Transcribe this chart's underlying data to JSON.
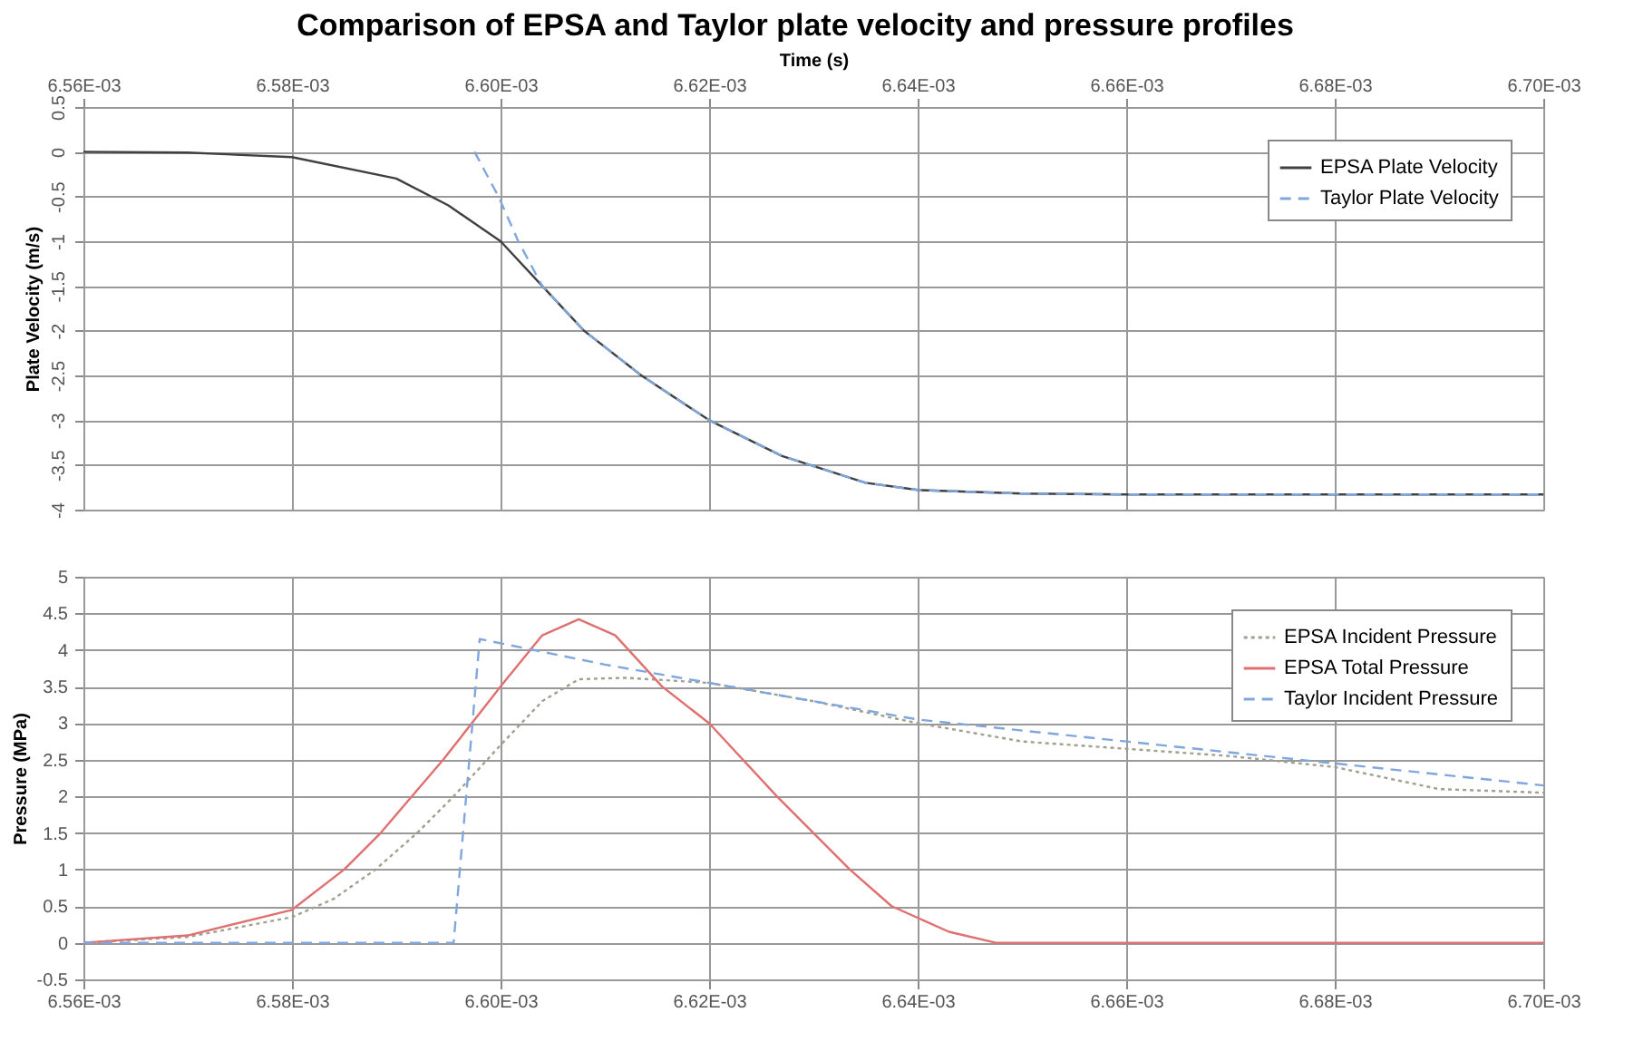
{
  "chart_data": [
    {
      "type": "line",
      "title": "Comparison of EPSA and Taylor plate velocity and pressure profiles",
      "xlabel": "Time (s)",
      "ylabel": "Plate Velocity (m/s)",
      "xlim": [
        0.00656,
        0.0067
      ],
      "xticks": [
        {
          "value": 0.00656,
          "label": "6.56E-03"
        },
        {
          "value": 0.00658,
          "label": "6.58E-03"
        },
        {
          "value": 0.0066,
          "label": "6.60E-03"
        },
        {
          "value": 0.00662,
          "label": "6.62E-03"
        },
        {
          "value": 0.00664,
          "label": "6.64E-03"
        },
        {
          "value": 0.00666,
          "label": "6.66E-03"
        },
        {
          "value": 0.00668,
          "label": "6.68E-03"
        },
        {
          "value": 0.0067,
          "label": "6.70E-03"
        }
      ],
      "ylim": [
        -4,
        0.5
      ],
      "yticks": [
        -4,
        -3.5,
        -3,
        -2.5,
        -2,
        -1.5,
        -1,
        -0.5,
        0,
        0.5
      ],
      "grid": true,
      "legend": "top right",
      "marker": "none",
      "series": [
        {
          "name": "EPSA Plate Velocity",
          "color": "#404040",
          "line_style": "solid",
          "x": [
            0.00656,
            0.00657,
            0.00658,
            0.00659,
            0.006595,
            0.0066,
            0.006604,
            0.006608,
            0.0066135,
            0.00662,
            0.006627,
            0.006635,
            0.00664,
            0.00665,
            0.00666,
            0.0067
          ],
          "values": [
            0,
            -0.01,
            -0.06,
            -0.3,
            -0.6,
            -1,
            -1.5,
            -2,
            -2.5,
            -3,
            -3.4,
            -3.7,
            -3.78,
            -3.82,
            -3.83,
            -3.83
          ]
        },
        {
          "name": "Taylor Plate Velocity",
          "color": "#7fa7dd",
          "line_style": "dashed",
          "x": [
            0.0065975,
            0.0065998,
            0.0066017,
            0.006604,
            0.006608,
            0.0066135,
            0.00662,
            0.006627,
            0.006635,
            0.00664,
            0.00665,
            0.00666,
            0.0067
          ],
          "values": [
            0,
            -0.5,
            -1,
            -1.5,
            -2,
            -2.5,
            -3,
            -3.4,
            -3.7,
            -3.78,
            -3.82,
            -3.83,
            -3.83
          ]
        }
      ]
    },
    {
      "type": "line",
      "ylabel": "Pressure (MPa)",
      "xlim": [
        0.00656,
        0.0067
      ],
      "xticks": [
        {
          "value": 0.00656,
          "label": "6.56E-03"
        },
        {
          "value": 0.00658,
          "label": "6.58E-03"
        },
        {
          "value": 0.0066,
          "label": "6.60E-03"
        },
        {
          "value": 0.00662,
          "label": "6.62E-03"
        },
        {
          "value": 0.00664,
          "label": "6.64E-03"
        },
        {
          "value": 0.00666,
          "label": "6.66E-03"
        },
        {
          "value": 0.00668,
          "label": "6.68E-03"
        },
        {
          "value": 0.0067,
          "label": "6.70E-03"
        }
      ],
      "ylim": [
        -0.5,
        5
      ],
      "yticks": [
        -0.5,
        0,
        0.5,
        1,
        1.5,
        2,
        2.5,
        3,
        3.5,
        4,
        4.5,
        5
      ],
      "grid": true,
      "legend": "top right",
      "marker": "none",
      "series": [
        {
          "name": "EPSA Incident Pressure",
          "color": "#a0a090",
          "line_style": "dotted",
          "x": [
            0.00656,
            0.00657,
            0.00658,
            0.006584,
            0.006588,
            0.006592,
            0.0065955,
            0.0066,
            0.006604,
            0.0066075,
            0.006612,
            0.00662,
            0.00663,
            0.00664,
            0.00665,
            0.00666,
            0.00667,
            0.00668,
            0.00669,
            0.0067
          ],
          "values": [
            0,
            0.08,
            0.35,
            0.6,
            1,
            1.5,
            2,
            2.7,
            3.3,
            3.6,
            3.62,
            3.55,
            3.3,
            3.0,
            2.75,
            2.65,
            2.55,
            2.4,
            2.1,
            2.05
          ]
        },
        {
          "name": "EPSA Total Pressure",
          "color": "#e07070",
          "line_style": "solid",
          "x": [
            0.00656,
            0.00657,
            0.00658,
            0.006585,
            0.0065885,
            0.0065945,
            0.0066,
            0.006604,
            0.0066075,
            0.006611,
            0.0066155,
            0.00662,
            0.0066265,
            0.0066335,
            0.0066375,
            0.006643,
            0.0066475,
            0.0067
          ],
          "values": [
            0,
            0.1,
            0.45,
            1,
            1.5,
            2.5,
            3.5,
            4.2,
            4.42,
            4.2,
            3.5,
            3,
            2,
            1,
            0.5,
            0.15,
            0,
            0
          ]
        },
        {
          "name": "Taylor Incident Pressure",
          "color": "#7fa7dd",
          "line_style": "dashed",
          "x": [
            0.00656,
            0.0065955,
            0.006598,
            0.00661,
            0.00662,
            0.00664,
            0.00666,
            0.00668,
            0.0067
          ],
          "values": [
            0,
            0,
            4.15,
            3.8,
            3.55,
            3.05,
            2.75,
            2.45,
            2.15
          ]
        }
      ]
    }
  ]
}
